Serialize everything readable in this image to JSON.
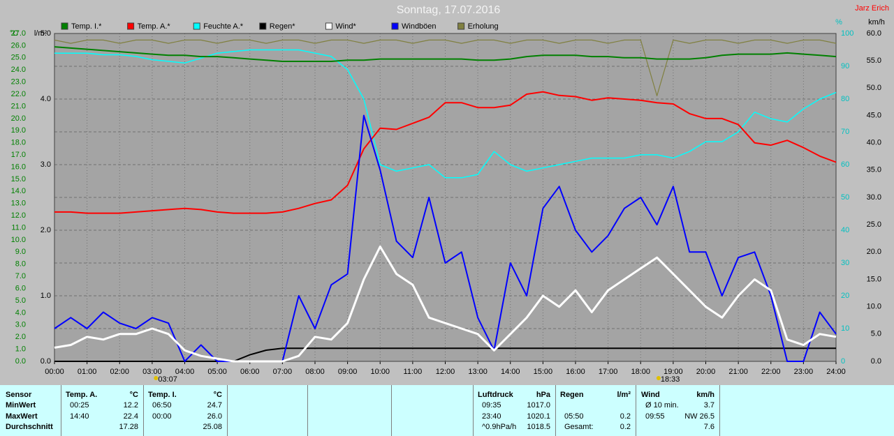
{
  "chart_data": {
    "type": "line",
    "title": "Sonntag, 17.07.2016",
    "author": "Jarz Erich",
    "units": {
      "y": "°C",
      "y3": "l/m²",
      "y2": "%",
      "y4": "km/h"
    },
    "x": [
      0,
      0.5,
      1,
      1.5,
      2,
      2.5,
      3,
      3.5,
      4,
      4.5,
      5,
      5.5,
      6,
      6.5,
      7,
      7.5,
      8,
      8.5,
      9,
      9.5,
      10,
      10.5,
      11,
      11.5,
      12,
      12.5,
      13,
      13.5,
      14,
      14.5,
      15,
      15.5,
      16,
      16.5,
      17,
      17.5,
      18,
      18.5,
      19,
      19.5,
      20,
      20.5,
      21,
      21.5,
      22,
      22.5,
      23,
      23.5,
      24
    ],
    "xlim": [
      0,
      24
    ],
    "xticks": [
      {
        "value": 0,
        "label": "00:00"
      },
      {
        "value": 1,
        "label": "01:00"
      },
      {
        "value": 2,
        "label": "02:00"
      },
      {
        "value": 3,
        "label": "03:00"
      },
      {
        "value": 4,
        "label": "04:00"
      },
      {
        "value": 5,
        "label": "05:00"
      },
      {
        "value": 6,
        "label": "06:00"
      },
      {
        "value": 7,
        "label": "07:00"
      },
      {
        "value": 8,
        "label": "08:00"
      },
      {
        "value": 9,
        "label": "09:00"
      },
      {
        "value": 10,
        "label": "10:00"
      },
      {
        "value": 11,
        "label": "11:00"
      },
      {
        "value": 12,
        "label": "12:00"
      },
      {
        "value": 13,
        "label": "13:00"
      },
      {
        "value": 14,
        "label": "14:00"
      },
      {
        "value": 15,
        "label": "15:00"
      },
      {
        "value": 16,
        "label": "16:00"
      },
      {
        "value": 17,
        "label": "17:00"
      },
      {
        "value": 18,
        "label": "18:00"
      },
      {
        "value": 19,
        "label": "19:00"
      },
      {
        "value": 20,
        "label": "20:00"
      },
      {
        "value": 21,
        "label": "21:00"
      },
      {
        "value": 22,
        "label": "22:00"
      },
      {
        "value": 23,
        "label": "23:00"
      },
      {
        "value": 24,
        "label": "24:00"
      }
    ],
    "ylim": [
      0,
      27
    ],
    "yticks": [
      {
        "value": 0,
        "label": "0.0"
      },
      {
        "value": 1,
        "label": "1.0"
      },
      {
        "value": 2,
        "label": "2.0"
      },
      {
        "value": 3,
        "label": "3.0"
      },
      {
        "value": 4,
        "label": "4.0"
      },
      {
        "value": 5,
        "label": "5.0"
      },
      {
        "value": 6,
        "label": "6.0"
      },
      {
        "value": 7,
        "label": "7.0"
      },
      {
        "value": 8,
        "label": "8.0"
      },
      {
        "value": 9,
        "label": "9.0"
      },
      {
        "value": 10,
        "label": "10.0"
      },
      {
        "value": 11,
        "label": "11.0"
      },
      {
        "value": 12,
        "label": "12.0"
      },
      {
        "value": 13,
        "label": "13.0"
      },
      {
        "value": 14,
        "label": "14.0"
      },
      {
        "value": 15,
        "label": "15.0"
      },
      {
        "value": 16,
        "label": "16.0"
      },
      {
        "value": 17,
        "label": "17.0"
      },
      {
        "value": 18,
        "label": "18.0"
      },
      {
        "value": 19,
        "label": "19.0"
      },
      {
        "value": 20,
        "label": "20.0"
      },
      {
        "value": 21,
        "label": "21.0"
      },
      {
        "value": 22,
        "label": "22.0"
      },
      {
        "value": 23,
        "label": "23.0"
      },
      {
        "value": 24,
        "label": "24.0"
      },
      {
        "value": 25,
        "label": "25.0"
      },
      {
        "value": 26,
        "label": "26.0"
      },
      {
        "value": 27,
        "label": "27.0"
      }
    ],
    "y3lim": [
      0,
      5
    ],
    "y3ticks": [
      {
        "value": 0,
        "label": "0.0"
      },
      {
        "value": 1,
        "label": "1.0"
      },
      {
        "value": 2,
        "label": "2.0"
      },
      {
        "value": 3,
        "label": "3.0"
      },
      {
        "value": 4,
        "label": "4.0"
      },
      {
        "value": 5,
        "label": "5.0"
      }
    ],
    "y2lim": [
      0,
      100
    ],
    "y2ticks": [
      0,
      10,
      20,
      30,
      40,
      50,
      60,
      70,
      80,
      90,
      100
    ],
    "y4lim": [
      0,
      60
    ],
    "y4ticks": [
      {
        "value": 0,
        "label": "0.0"
      },
      {
        "value": 5,
        "label": "5.0"
      },
      {
        "value": 10,
        "label": "10.0"
      },
      {
        "value": 15,
        "label": "15.0"
      },
      {
        "value": 20,
        "label": "20.0"
      },
      {
        "value": 25,
        "label": "25.0"
      },
      {
        "value": 30,
        "label": "30.0"
      },
      {
        "value": 35,
        "label": "35.0"
      },
      {
        "value": 40,
        "label": "40.0"
      },
      {
        "value": 45,
        "label": "45.0"
      },
      {
        "value": 50,
        "label": "50.0"
      },
      {
        "value": 55,
        "label": "55.0"
      },
      {
        "value": 60,
        "label": "60.0"
      }
    ],
    "grid": true,
    "annotations": [
      "03:07",
      "18:33"
    ],
    "series": [
      {
        "name": "Temp. I.*",
        "color": "#008000",
        "axis": "y",
        "values": [
          25.9,
          25.8,
          25.7,
          25.6,
          25.5,
          25.4,
          25.3,
          25.2,
          25.2,
          25.1,
          25.1,
          25.0,
          24.9,
          24.8,
          24.7,
          24.7,
          24.7,
          24.7,
          24.8,
          24.8,
          24.9,
          24.9,
          24.9,
          24.9,
          24.9,
          24.9,
          24.8,
          24.8,
          24.9,
          25.1,
          25.2,
          25.2,
          25.2,
          25.1,
          25.1,
          25.0,
          25.0,
          24.9,
          24.9,
          24.9,
          25.0,
          25.2,
          25.3,
          25.3,
          25.3,
          25.4,
          25.3,
          25.2,
          25.1
        ]
      },
      {
        "name": "Temp. A.*",
        "color": "#ff0000",
        "axis": "y",
        "values": [
          12.3,
          12.3,
          12.2,
          12.2,
          12.2,
          12.3,
          12.4,
          12.5,
          12.6,
          12.5,
          12.3,
          12.2,
          12.2,
          12.2,
          12.3,
          12.6,
          13.0,
          13.3,
          14.5,
          17.5,
          19.2,
          19.1,
          19.6,
          20.1,
          21.3,
          21.3,
          20.9,
          20.9,
          21.1,
          22.0,
          22.2,
          21.9,
          21.8,
          21.5,
          21.7,
          21.6,
          21.5,
          21.3,
          21.2,
          20.4,
          20.0,
          20.0,
          19.5,
          18.0,
          17.8,
          18.2,
          17.6,
          16.9,
          16.4
        ]
      },
      {
        "name": "Feuchte A.*",
        "color": "#00ffff",
        "axis": "y2",
        "values": [
          94,
          94,
          94,
          93.5,
          93.5,
          93,
          92,
          91.5,
          91,
          92.5,
          94,
          94.5,
          95,
          95,
          95,
          95,
          94,
          93,
          89,
          80,
          60,
          58,
          59,
          60,
          56,
          56,
          57,
          64,
          60,
          58,
          59,
          60,
          61,
          62,
          62,
          62,
          63,
          63,
          62,
          64,
          67,
          67,
          70,
          76,
          74,
          73,
          77,
          80,
          82
        ]
      },
      {
        "name": "Regen*",
        "color": "#000000",
        "axis": "y3",
        "values": [
          0,
          0,
          0,
          0,
          0,
          0,
          0,
          0,
          0,
          0,
          0,
          0,
          0.1,
          0.17,
          0.2,
          0.2,
          0.2,
          0.2,
          0.2,
          0.2,
          0.2,
          0.2,
          0.2,
          0.2,
          0.2,
          0.2,
          0.2,
          0.2,
          0.2,
          0.2,
          0.2,
          0.2,
          0.2,
          0.2,
          0.2,
          0.2,
          0.2,
          0.2,
          0.2,
          0.2,
          0.2,
          0.2,
          0.2,
          0.2,
          0.2,
          0.2,
          0.2,
          0.2,
          0.2
        ]
      },
      {
        "name": "Wind*",
        "color": "#ffffff",
        "axis": "y4",
        "values": [
          2.5,
          3,
          4.5,
          4,
          5,
          5,
          6,
          5,
          2,
          1,
          0.5,
          0,
          0,
          0,
          0,
          1,
          4.5,
          4,
          7,
          15,
          21,
          16,
          14,
          8,
          7,
          6,
          5,
          2,
          5,
          8,
          12,
          10,
          13,
          9,
          13,
          15,
          17,
          19,
          16,
          13,
          10,
          8,
          12,
          15,
          13,
          4,
          3,
          5,
          4.5
        ]
      },
      {
        "name": "Windböen",
        "color": "#0000ff",
        "axis": "y4",
        "values": [
          6,
          8,
          6,
          9,
          7,
          6,
          8,
          7,
          0,
          3,
          0,
          0,
          0,
          0,
          0,
          12,
          6,
          14,
          16,
          45,
          35,
          22,
          19,
          30,
          18,
          20,
          8,
          2,
          18,
          12,
          28,
          32,
          24,
          20,
          23,
          28,
          30,
          25,
          32,
          20,
          20,
          12,
          19,
          20,
          12,
          0,
          0,
          9,
          5
        ]
      },
      {
        "name": "Erholung",
        "color": "#808040",
        "axis": "y2",
        "values": [
          98,
          97,
          98,
          98,
          97,
          98,
          98,
          97,
          98,
          98,
          97,
          98,
          98,
          97,
          98,
          98,
          97,
          98,
          98,
          97,
          98,
          98,
          97,
          98,
          98,
          97,
          98,
          98,
          97,
          98,
          98,
          97,
          98,
          98,
          97,
          98,
          98,
          81,
          98,
          97,
          98,
          98,
          97,
          98,
          98,
          97,
          98,
          98,
          97
        ]
      }
    ]
  },
  "table": {
    "columns": [
      {
        "title": "Sensor",
        "cells": [
          {
            "left": "MinWert"
          },
          {
            "left": "MaxWert"
          },
          {
            "left": "Durchschnitt"
          }
        ]
      },
      {
        "title": "Temp. A.",
        "unit": "°C",
        "cells": [
          {
            "left": "00:25",
            "right": "12.2"
          },
          {
            "left": "14:40",
            "right": "22.4"
          },
          {
            "right": "17.28"
          }
        ]
      },
      {
        "title": "Temp. I.",
        "unit": "°C",
        "cells": [
          {
            "left": "06:50",
            "right": "24.7"
          },
          {
            "left": "00:00",
            "right": "26.0"
          },
          {
            "right": "25.08"
          }
        ]
      },
      {
        "title": "Luftdruck",
        "unit": "hPa",
        "cells": [
          {
            "left": "09:35",
            "right": "1017.0"
          },
          {
            "left": "23:40",
            "right": "1020.1"
          },
          {
            "left": "^0.9hPa/h",
            "right": "1018.5"
          }
        ]
      },
      {
        "title": "Regen",
        "unit": "l/m²",
        "cells": [
          {},
          {
            "left": "05:50",
            "right": "0.2"
          },
          {
            "left": "Gesamt:",
            "right": "0.2"
          }
        ]
      },
      {
        "title": "Wind",
        "unit": "km/h",
        "cells": [
          {
            "left": "Ø 10 min.",
            "right": "3.7"
          },
          {
            "left": "09:55",
            "right": "NW 26.5"
          },
          {
            "right": "7.6"
          }
        ]
      }
    ]
  }
}
